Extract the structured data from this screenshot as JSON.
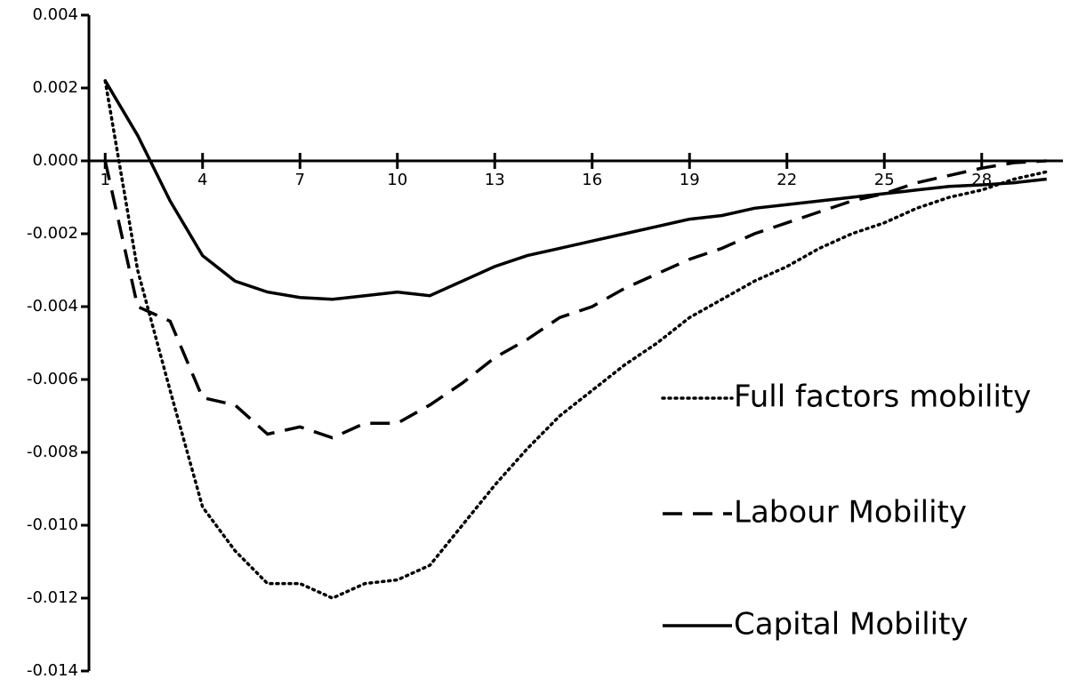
{
  "chart_data": {
    "type": "line",
    "x": [
      1,
      2,
      3,
      4,
      5,
      6,
      7,
      8,
      9,
      10,
      11,
      12,
      13,
      14,
      15,
      16,
      17,
      18,
      19,
      20,
      21,
      22,
      23,
      24,
      25,
      26,
      27,
      28,
      29,
      30
    ],
    "series": [
      {
        "name": "Full factors mobility",
        "color": "#000000",
        "dash": "dotted",
        "values": [
          0.0022,
          -0.003,
          -0.0063,
          -0.0095,
          -0.0107,
          -0.0116,
          -0.0116,
          -0.012,
          -0.0116,
          -0.0115,
          -0.0111,
          -0.01,
          -0.0089,
          -0.0079,
          -0.007,
          -0.0063,
          -0.0056,
          -0.005,
          -0.0043,
          -0.0038,
          -0.0033,
          -0.0029,
          -0.0024,
          -0.002,
          -0.0017,
          -0.0013,
          -0.001,
          -0.0008,
          -0.0005,
          -0.0003
        ]
      },
      {
        "name": "Labour Mobility",
        "color": "#000000",
        "dash": "dashed",
        "values": [
          0,
          -0.004,
          -0.0044,
          -0.0065,
          -0.0067,
          -0.0075,
          -0.0073,
          -0.0076,
          -0.0072,
          -0.0072,
          -0.0067,
          -0.0061,
          -0.0054,
          -0.0049,
          -0.0043,
          -0.004,
          -0.0035,
          -0.0031,
          -0.0027,
          -0.0024,
          -0.002,
          -0.0017,
          -0.0014,
          -0.0011,
          -0.0009,
          -0.0006,
          -0.0004,
          -0.0002,
          -5e-05,
          0
        ]
      },
      {
        "name": "Capital Mobility",
        "color": "#000000",
        "dash": "solid",
        "values": [
          0.0022,
          0.0007,
          -0.0011,
          -0.0026,
          -0.0033,
          -0.0036,
          -0.00375,
          -0.0038,
          -0.0037,
          -0.0036,
          -0.0037,
          -0.0033,
          -0.0029,
          -0.0026,
          -0.0024,
          -0.0022,
          -0.002,
          -0.0018,
          -0.0016,
          -0.0015,
          -0.0013,
          -0.0012,
          -0.0011,
          -0.001,
          -0.0009,
          -0.0008,
          -0.0007,
          -0.00066,
          -0.0006,
          -0.0005
        ]
      }
    ],
    "xlim": [
      0.5,
      30.5
    ],
    "xticks": [
      1,
      4,
      7,
      10,
      13,
      16,
      19,
      22,
      25,
      28
    ],
    "ylim": [
      -0.014,
      0.004
    ],
    "yticks": [
      {
        "value": 0.004,
        "label": "0.004"
      },
      {
        "value": 0.002,
        "label": "0.002"
      },
      {
        "value": 0,
        "label": "0.000"
      },
      {
        "value": -0.002,
        "label": "-0.002"
      },
      {
        "value": -0.004,
        "label": "-0.004"
      },
      {
        "value": -0.006,
        "label": "-0.006"
      },
      {
        "value": -0.008,
        "label": "-0.008"
      },
      {
        "value": -0.01,
        "label": "-0.010"
      },
      {
        "value": -0.012,
        "label": "-0.012"
      },
      {
        "value": -0.014,
        "label": "-0.014"
      }
    ],
    "grid": false,
    "legend": "right"
  }
}
